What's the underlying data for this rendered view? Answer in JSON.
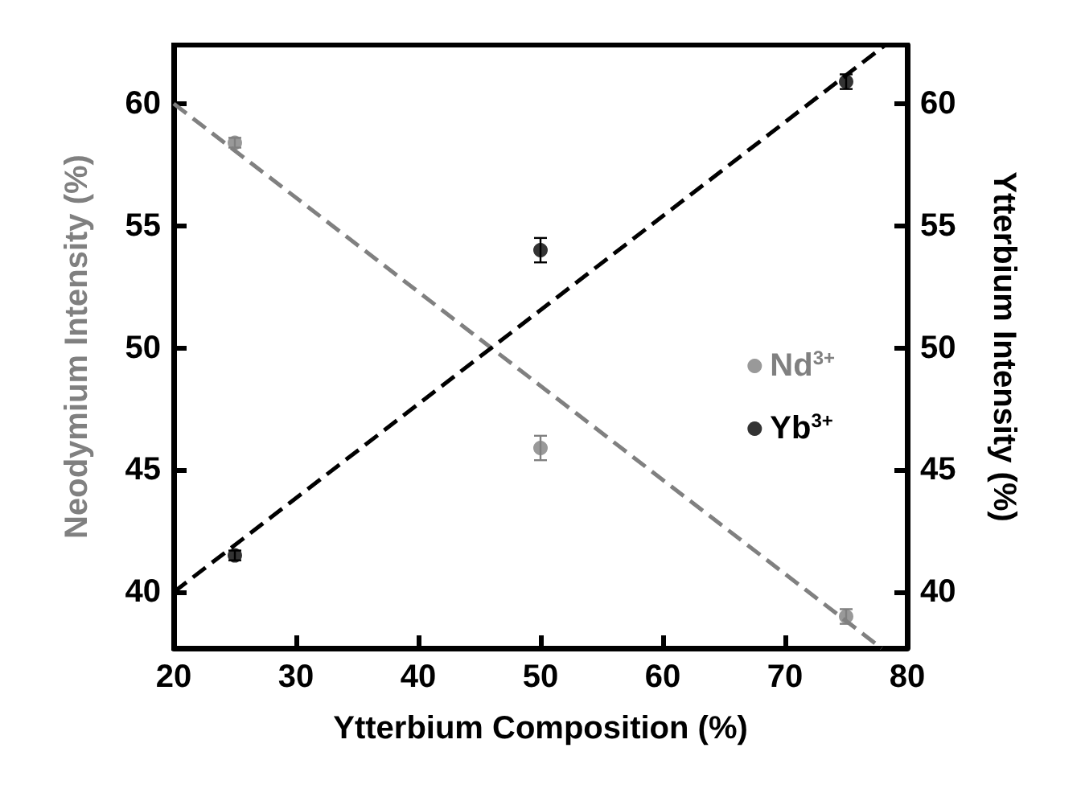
{
  "chart_data": {
    "type": "scatter",
    "xlabel": "Ytterbium Composition (%)",
    "ylabel": "Neodymium Intensity (%)",
    "y2label": "Ytterbium Intensity (%)",
    "x": [
      25,
      50,
      75
    ],
    "series": [
      {
        "name": "Nd$^{3+}$",
        "color": "#808080",
        "values": [
          58.4,
          45.9,
          39.0
        ],
        "errors": [
          0.2,
          0.5,
          0.3
        ]
      },
      {
        "name": "Yb$^{3+}$",
        "color": "#000000",
        "values": [
          41.5,
          54.0,
          60.9
        ],
        "errors": [
          0.2,
          0.5,
          0.3
        ],
        "axis": "y2"
      },
      {
        "type": "line",
        "color": "#808080",
        "x": [
          20,
          77.9
        ],
        "values": [
          60,
          37.7
        ],
        "line_style": "dashed",
        "marker": "none"
      },
      {
        "type": "line",
        "color": "#000000",
        "x": [
          20,
          78.2
        ],
        "values": [
          40,
          62.4
        ],
        "line_style": "dashed",
        "marker": "none",
        "axis": "y2"
      }
    ],
    "xlim": [
      20,
      80
    ],
    "xticks": [
      20,
      30,
      40,
      50,
      60,
      70,
      80
    ],
    "ylim": [
      37.7,
      62.4
    ],
    "yticks": [
      40,
      45,
      50,
      55,
      60
    ],
    "y2lim": [
      37.7,
      62.4
    ],
    "y2ticks": [
      40,
      45,
      50,
      55,
      60
    ],
    "marker": "circle",
    "grid": false,
    "legend": "right"
  }
}
